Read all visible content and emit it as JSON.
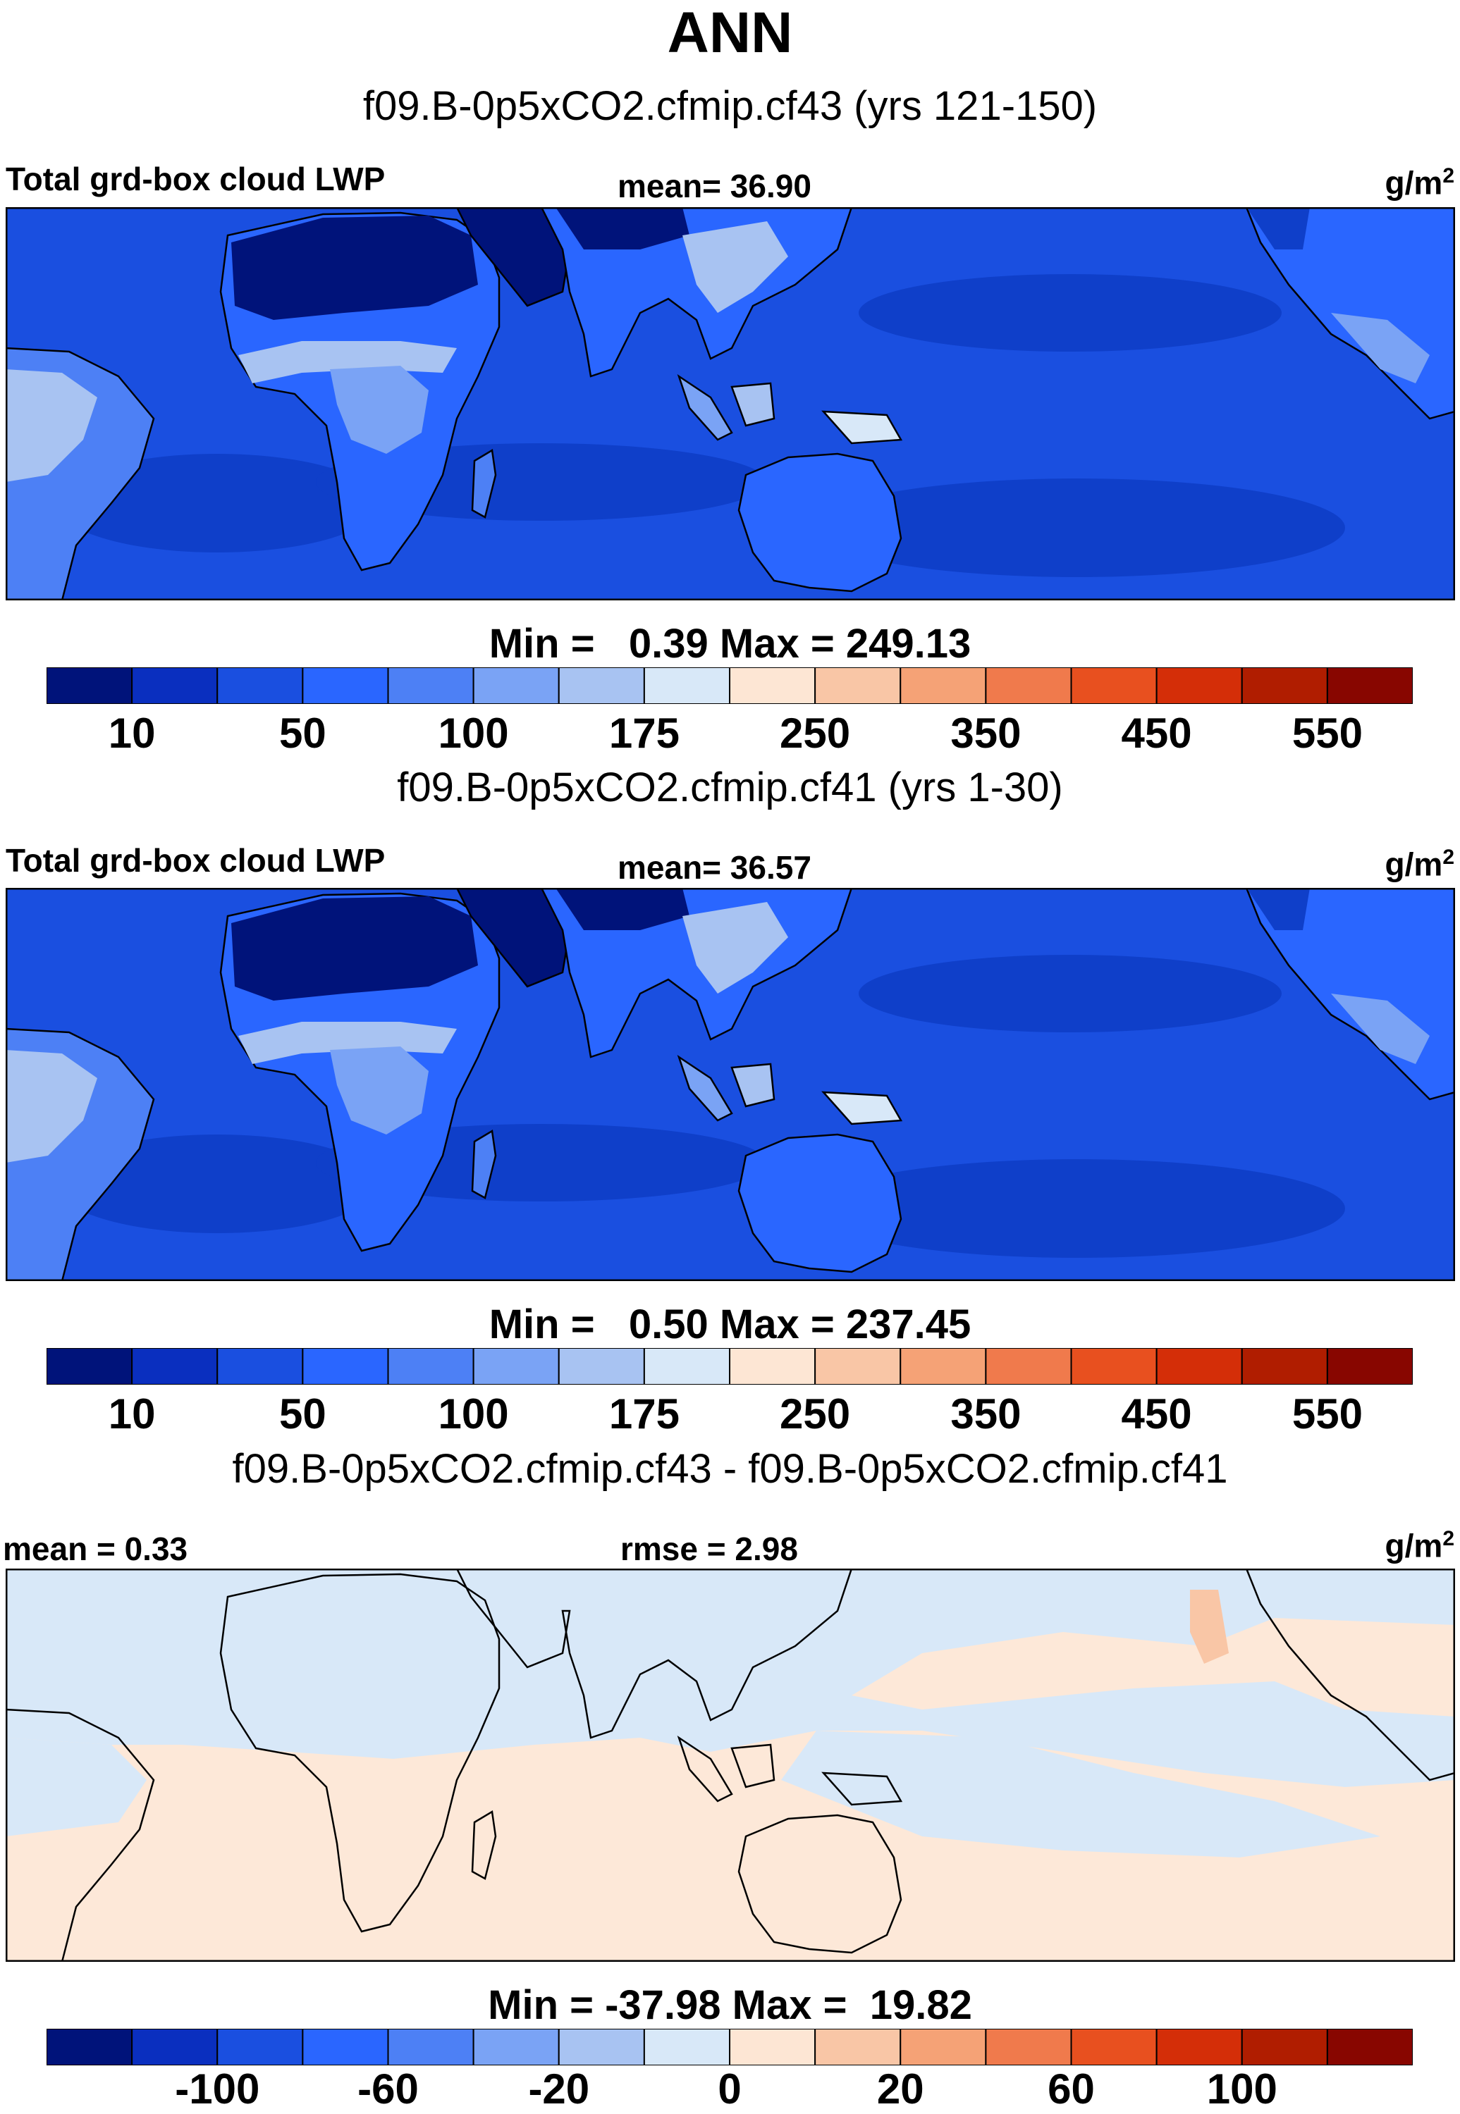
{
  "figure": {
    "title": "ANN",
    "colors": {
      "land_outline": "#000000",
      "frame": "#000000"
    }
  },
  "panels": [
    {
      "subtitle": "f09.B-0p5xCO2.cfmip.cf43 (yrs 121-150)",
      "left_label": "Total grd-box cloud LWP",
      "center_label": "mean=  36.90",
      "units": "g/m",
      "units_exp": "2",
      "minmax": "Min =   0.39 Max = 249.13",
      "ocean_color": "#1a4fe0",
      "colorbar": {
        "colors": [
          "#00137a",
          "#0a2fbf",
          "#1a4fe0",
          "#2a66ff",
          "#4d80f5",
          "#7aa3f5",
          "#a8c3f2",
          "#d8e8f8",
          "#fde6d4",
          "#f9c6a6",
          "#f5a276",
          "#f07a4c",
          "#e8501f",
          "#d42e08",
          "#b01d00",
          "#880600"
        ],
        "tick_labels": [
          "10",
          "50",
          "100",
          "175",
          "250",
          "350",
          "450",
          "550"
        ]
      }
    },
    {
      "subtitle": "f09.B-0p5xCO2.cfmip.cf41 (yrs 1-30)",
      "left_label": "Total grd-box cloud LWP",
      "center_label": "mean=  36.57",
      "units": "g/m",
      "units_exp": "2",
      "minmax": "Min =   0.50 Max = 237.45",
      "ocean_color": "#1a4fe0",
      "colorbar": {
        "colors": [
          "#00137a",
          "#0a2fbf",
          "#1a4fe0",
          "#2a66ff",
          "#4d80f5",
          "#7aa3f5",
          "#a8c3f2",
          "#d8e8f8",
          "#fde6d4",
          "#f9c6a6",
          "#f5a276",
          "#f07a4c",
          "#e8501f",
          "#d42e08",
          "#b01d00",
          "#880600"
        ],
        "tick_labels": [
          "10",
          "50",
          "100",
          "175",
          "250",
          "350",
          "450",
          "550"
        ]
      }
    },
    {
      "subtitle": "f09.B-0p5xCO2.cfmip.cf43 - f09.B-0p5xCO2.cfmip.cf41",
      "left_label": "mean =   0.33",
      "center_label": "rmse =   2.98",
      "units": "g/m",
      "units_exp": "2",
      "minmax": "Min = -37.98 Max =  19.82",
      "ocean_color": "#fde8d8",
      "colorbar": {
        "colors": [
          "#00137a",
          "#0a2fbf",
          "#1a4fe0",
          "#2a66ff",
          "#4d80f5",
          "#7aa3f5",
          "#a8c3f2",
          "#d8e8f8",
          "#fde6d4",
          "#f9c6a6",
          "#f5a276",
          "#f07a4c",
          "#e8501f",
          "#d42e08",
          "#b01d00",
          "#880600"
        ],
        "tick_labels": [
          "-100",
          "-60",
          "-20",
          "0",
          "20",
          "60",
          "100"
        ]
      }
    }
  ]
}
